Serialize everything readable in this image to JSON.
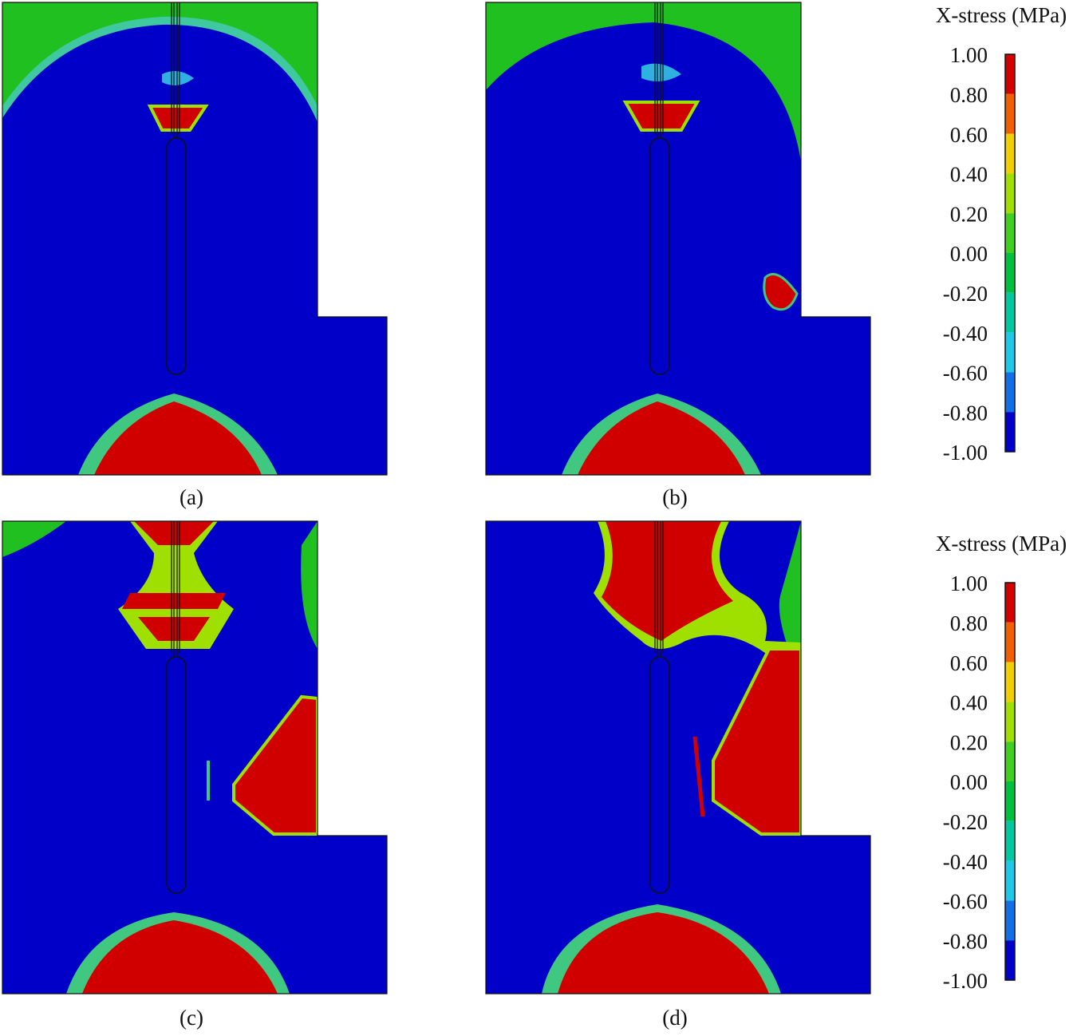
{
  "panels": [
    {
      "label": "(a)"
    },
    {
      "label": "(b)"
    },
    {
      "label": "(c)"
    },
    {
      "label": "(d)"
    }
  ],
  "colorbars": [
    {
      "title": "X-stress (MPa)",
      "ticks": [
        "1.00",
        "0.80",
        "0.60",
        "0.40",
        "0.20",
        "0.00",
        "-0.20",
        "-0.40",
        "-0.60",
        "-0.80",
        "-1.00"
      ]
    },
    {
      "title": "X-stress (MPa)",
      "ticks": [
        "1.00",
        "0.80",
        "0.60",
        "0.40",
        "0.20",
        "0.00",
        "-0.20",
        "-0.40",
        "-0.60",
        "-0.80",
        "-1.00"
      ]
    }
  ]
}
